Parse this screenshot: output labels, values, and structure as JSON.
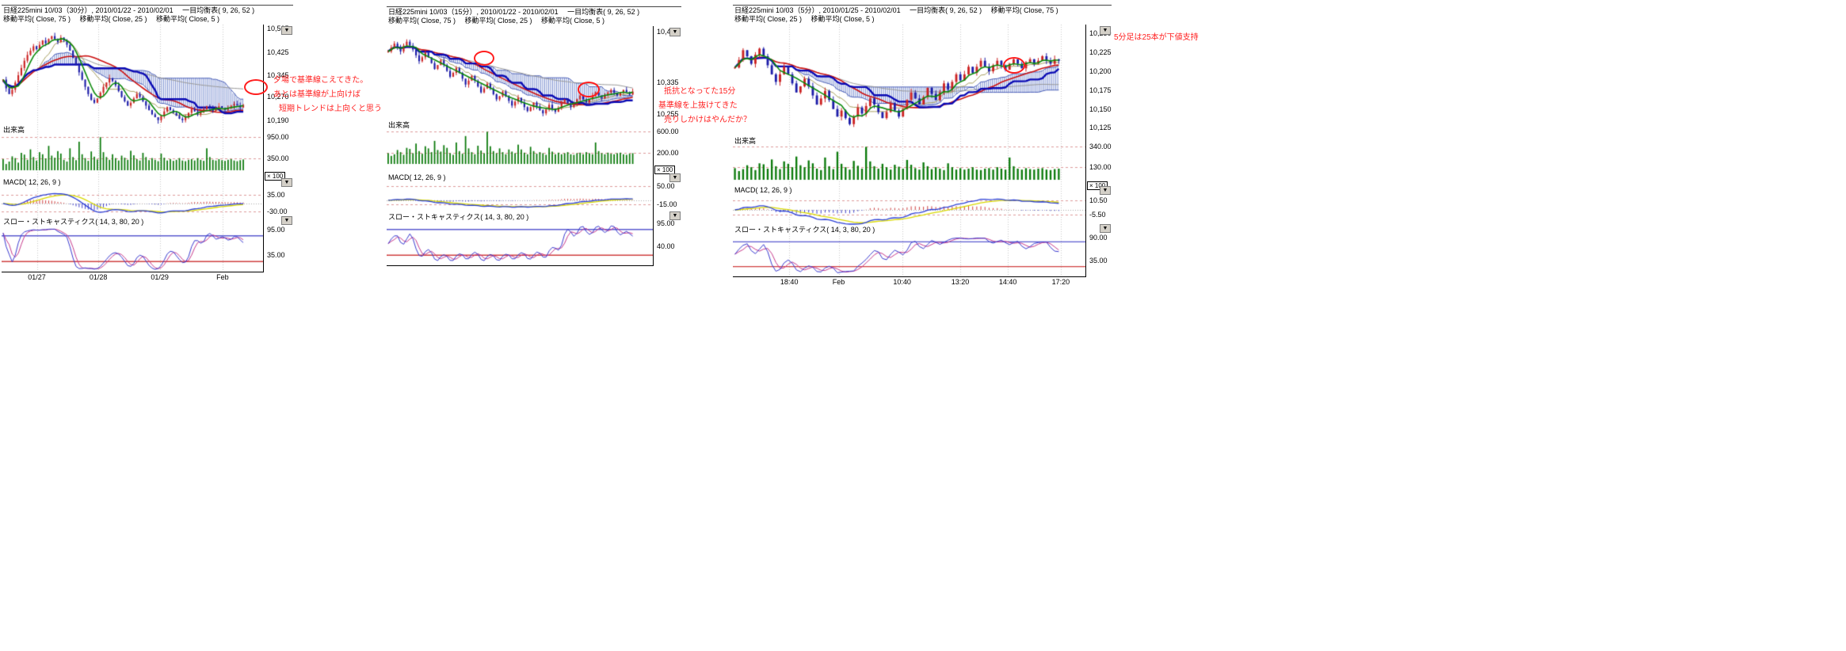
{
  "icons": {
    "dropdown": "▼"
  },
  "colors": {
    "up": "#cc2222",
    "down": "#1c1ca8",
    "cloud": "#7b8fd0",
    "cloud_edge": "#4a5fb8",
    "ma5": "#0a8a0a",
    "ma25": "#cc1111",
    "ma75": "#9a9a9a",
    "tenkan": "#a8a060",
    "kijun": "#0a0ab4",
    "volume": "#0a7a0a",
    "macd": "#2b3fd6",
    "macd_signal": "#d9d900",
    "macd_hist_pos": "#d04040",
    "macd_hist_neg": "#4040c8",
    "stoch_k": "#3a3ad0",
    "stoch_d": "#c83a8c",
    "band_hi": "#5a5ad0",
    "band_lo": "#d04040",
    "grid": "#c9c9c9",
    "tick_line": "#de9a9a",
    "annotation": "#ff1f1f",
    "axis_text": "#000000"
  },
  "panels": [
    {
      "header_line1": "日経225mini 10/03（30分）, 2010/01/22 - 2010/02/01　 一目均衡表( 9, 26, 52 )",
      "header_line2": "移動平均( Close, 75 )　 移動平均( Close, 25 )　 移動平均( Close, 5 )",
      "volume_label": "出来高",
      "macd_label": "MACD( 12, 26, 9 )",
      "stoch_label": "スロー・ストキャスティクス( 14, 3, 80, 20 )",
      "multiplier": "× 100",
      "annotations": [
        "夕場で基準線こえてきた。",
        "あとは基準線が上向けば",
        "短期トレンドは上向くと思う"
      ]
    },
    {
      "header_line1": "日経225mini 10/03（15分）, 2010/01/22 - 2010/02/01　 一目均衡表( 9, 26, 52 )",
      "header_line2": "移動平均( Close, 75 )　 移動平均( Close, 25 )　 移動平均( Close, 5 )",
      "volume_label": "出来高",
      "macd_label": "MACD( 12, 26, 9 )",
      "stoch_label": "スロー・ストキャスティクス( 14, 3, 80, 20 )",
      "multiplier": "× 100",
      "annotations": [
        "抵抗となってた15分",
        "基準線を上抜けてきた",
        "売りしかけはやんだか？"
      ]
    },
    {
      "header_line1": "日経225mini 10/03（5分）, 2010/01/25 - 2010/02/01　 一目均衡表( 9, 26, 52 )　 移動平均( Close, 75 )",
      "header_line2": "移動平均( Close, 25 )　 移動平均( Close, 5 )",
      "volume_label": "出来高",
      "macd_label": "MACD( 12, 26, 9 )",
      "stoch_label": "スロー・ストキャスティクス( 14, 3, 80, 20 )",
      "multiplier": "× 100",
      "annotations": [
        "5分足は25本が下値支持"
      ]
    }
  ],
  "chart_data": [
    {
      "type": "candlestick",
      "title": "日経225mini 10/03（30分）",
      "date_range": "2010/01/22 - 2010/02/01",
      "overlays": [
        "一目均衡表( 9, 26, 52 )",
        "移動平均( Close, 75 )",
        "移動平均( Close, 25 )",
        "移動平均( Close, 5 )"
      ],
      "ylim": [
        10170,
        10520
      ],
      "price_ticks": [
        10505,
        10425,
        10345,
        10270,
        10190
      ],
      "volume_max": 1000,
      "volume_ticks": [
        950,
        350
      ],
      "macd_range": [
        -55,
        55
      ],
      "macd_ticks": [
        35,
        -30
      ],
      "stoch_range": [
        0,
        100
      ],
      "stoch_ticks": [
        95,
        35
      ],
      "stoch_bands": [
        80,
        20
      ],
      "x_labels": [
        {
          "label": "01/27",
          "pos": 0.135
        },
        {
          "label": "01/28",
          "pos": 0.37
        },
        {
          "label": "01/29",
          "pos": 0.605
        },
        {
          "label": "Feb",
          "pos": 0.845
        }
      ],
      "closes": [
        10330,
        10300,
        10280,
        10295,
        10320,
        10345,
        10370,
        10395,
        10415,
        10430,
        10445,
        10435,
        10450,
        10465,
        10455,
        10470,
        10480,
        10470,
        10460,
        10475,
        10465,
        10450,
        10430,
        10405,
        10380,
        10355,
        10330,
        10305,
        10280,
        10260,
        10250,
        10265,
        10285,
        10305,
        10320,
        10335,
        10325,
        10310,
        10290,
        10270,
        10255,
        10240,
        10250,
        10265,
        10280,
        10270,
        10255,
        10240,
        10225,
        10210,
        10200,
        10190,
        10205,
        10220,
        10235,
        10225,
        10215,
        10205,
        10195,
        10190,
        10200,
        10215,
        10228,
        10220,
        10210,
        10218,
        10228,
        10238,
        10230,
        10222,
        10228,
        10238,
        10232,
        10226,
        10232,
        10240,
        10246,
        10240,
        10234,
        10242
      ],
      "volumes": [
        320,
        180,
        250,
        400,
        350,
        220,
        500,
        450,
        300,
        600,
        380,
        280,
        520,
        460,
        340,
        700,
        420,
        360,
        550,
        480,
        300,
        250,
        630,
        380,
        290,
        820,
        460,
        350,
        270,
        540,
        390,
        310,
        950,
        520,
        380,
        300,
        460,
        350,
        280,
        420,
        360,
        300,
        560,
        430,
        320,
        280,
        500,
        380,
        290,
        350,
        300,
        260,
        480,
        360,
        280,
        320,
        270,
        300,
        350,
        280,
        260,
        300,
        320,
        280,
        350,
        300,
        270,
        630,
        380,
        300,
        280,
        320,
        290,
        270,
        300,
        320,
        280,
        260,
        290,
        310
      ]
    },
    {
      "type": "candlestick",
      "title": "日経225mini 10/03（15分）",
      "date_range": "2010/01/22 - 2010/02/01",
      "overlays": [
        "一目均衡表( 9, 26, 52 )",
        "移動平均( Close, 75 )",
        "移動平均( Close, 25 )",
        "移動平均( Close, 5 )"
      ],
      "ylim": [
        10240,
        10480
      ],
      "price_ticks": [
        10465,
        10335,
        10255
      ],
      "volume_max": 650,
      "volume_ticks": [
        600,
        200
      ],
      "macd_range": [
        -40,
        62
      ],
      "macd_ticks": [
        50,
        -15
      ],
      "stoch_range": [
        0,
        100
      ],
      "stoch_ticks": [
        95,
        40
      ],
      "stoch_bands": [
        80,
        20
      ],
      "x_labels": [],
      "closes": [
        10415,
        10425,
        10435,
        10425,
        10415,
        10430,
        10440,
        10430,
        10420,
        10405,
        10390,
        10400,
        10412,
        10400,
        10385,
        10370,
        10380,
        10392,
        10380,
        10365,
        10350,
        10360,
        10372,
        10360,
        10345,
        10330,
        10340,
        10352,
        10340,
        10325,
        10310,
        10320,
        10332,
        10320,
        10305,
        10292,
        10300,
        10312,
        10300,
        10288,
        10276,
        10286,
        10296,
        10284,
        10272,
        10262,
        10272,
        10284,
        10274,
        10264,
        10256,
        10266,
        10278,
        10268,
        10260,
        10270,
        10282,
        10292,
        10282,
        10272,
        10280,
        10292,
        10302,
        10292,
        10284,
        10292,
        10302,
        10310,
        10302,
        10294,
        10302,
        10310,
        10316,
        10308,
        10302,
        10310,
        10316,
        10310,
        10304,
        10312
      ],
      "volumes": [
        200,
        150,
        180,
        260,
        220,
        170,
        300,
        280,
        200,
        380,
        240,
        190,
        330,
        290,
        220,
        430,
        260,
        230,
        350,
        300,
        200,
        170,
        400,
        240,
        190,
        520,
        290,
        220,
        180,
        340,
        250,
        200,
        600,
        330,
        240,
        200,
        290,
        220,
        180,
        270,
        230,
        200,
        360,
        270,
        210,
        180,
        320,
        240,
        190,
        220,
        200,
        170,
        300,
        230,
        180,
        210,
        180,
        200,
        220,
        180,
        170,
        200,
        210,
        180,
        220,
        200,
        180,
        400,
        240,
        200,
        180,
        210,
        190,
        180,
        200,
        210,
        180,
        170,
        190,
        200
      ]
    },
    {
      "type": "candlestick",
      "title": "日経225mini 10/03（5分）",
      "date_range": "2010/01/25 - 2010/02/01",
      "overlays": [
        "一目均衡表( 9, 26, 52 )",
        "移動平均( Close, 75 )",
        "移動平均( Close, 25 )",
        "移動平均( Close, 5 )"
      ],
      "ylim": [
        10115,
        10262
      ],
      "price_ticks": [
        10250,
        10225,
        10200,
        10175,
        10150,
        10125
      ],
      "volume_max": 360,
      "volume_ticks": [
        340,
        130
      ],
      "macd_range": [
        -16,
        16
      ],
      "macd_ticks": [
        10.5,
        -5.5
      ],
      "stoch_range": [
        0,
        100
      ],
      "stoch_ticks": [
        90,
        35
      ],
      "stoch_bands": [
        80,
        20
      ],
      "x_labels": [
        {
          "label": "18:40",
          "pos": 0.16
        },
        {
          "label": "Feb",
          "pos": 0.3
        },
        {
          "label": "10:40",
          "pos": 0.48
        },
        {
          "label": "13:20",
          "pos": 0.645
        },
        {
          "label": "14:40",
          "pos": 0.78
        },
        {
          "label": "17:20",
          "pos": 0.93
        }
      ],
      "closes": [
        10205,
        10215,
        10228,
        10220,
        10210,
        10222,
        10230,
        10220,
        10208,
        10196,
        10186,
        10196,
        10206,
        10196,
        10184,
        10172,
        10180,
        10190,
        10180,
        10168,
        10156,
        10164,
        10174,
        10162,
        10150,
        10140,
        10148,
        10138,
        10130,
        10140,
        10152,
        10144,
        10154,
        10164,
        10156,
        10146,
        10138,
        10146,
        10158,
        10148,
        10140,
        10150,
        10162,
        10172,
        10164,
        10156,
        10166,
        10178,
        10170,
        10162,
        10172,
        10184,
        10176,
        10186,
        10196,
        10188,
        10196,
        10206,
        10198,
        10206,
        10214,
        10206,
        10200,
        10208,
        10214,
        10208,
        10202,
        10210,
        10216,
        10210,
        10204,
        10212,
        10216,
        10210,
        10214,
        10220,
        10214,
        10210,
        10216,
        10214
      ],
      "volumes": [
        120,
        90,
        110,
        150,
        130,
        100,
        170,
        160,
        115,
        210,
        140,
        110,
        190,
        165,
        130,
        240,
        150,
        130,
        200,
        170,
        115,
        100,
        230,
        140,
        110,
        290,
        165,
        130,
        105,
        195,
        145,
        115,
        340,
        190,
        140,
        115,
        165,
        130,
        105,
        155,
        135,
        115,
        205,
        155,
        120,
        105,
        180,
        140,
        110,
        130,
        115,
        100,
        170,
        130,
        105,
        120,
        105,
        115,
        130,
        105,
        100,
        115,
        120,
        105,
        130,
        115,
        105,
        230,
        140,
        115,
        105,
        120,
        110,
        105,
        115,
        120,
        105,
        100,
        110,
        115
      ]
    }
  ]
}
